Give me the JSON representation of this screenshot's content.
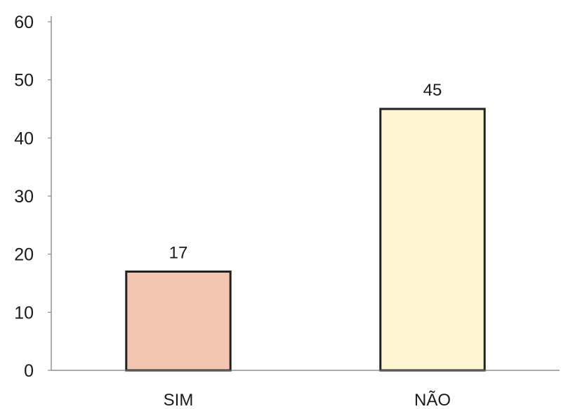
{
  "chart_data": {
    "type": "bar",
    "categories": [
      "SIM",
      "NÃO"
    ],
    "values": [
      17,
      45
    ],
    "data_labels": [
      "17",
      "45"
    ],
    "bar_colors": [
      "#f2c6b0",
      "#fbf6cf"
    ],
    "ylim": [
      0,
      60
    ],
    "yticks": [
      0,
      10,
      20,
      30,
      40,
      50,
      60
    ],
    "ytick_labels": [
      "0",
      "10",
      "20",
      "30",
      "40",
      "50",
      "60"
    ],
    "grid": false,
    "legend": "none"
  }
}
